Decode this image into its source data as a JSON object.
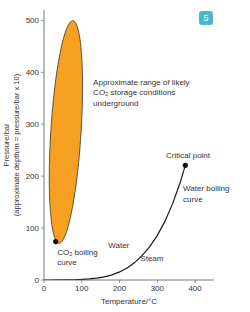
{
  "chart_data": {
    "type": "line",
    "x_label": "Temperature/°C",
    "y_label": "Pressure/bar\n(approximate depth/m = pressure/bar x 10)",
    "xlim": [
      0,
      450
    ],
    "ylim": [
      0,
      520
    ],
    "xticks": [
      0,
      100,
      200,
      300,
      400
    ],
    "yticks": [
      0,
      100,
      200,
      300,
      400,
      500
    ],
    "grid": false,
    "x": [
      0,
      10,
      20,
      40,
      60,
      80,
      100,
      120,
      140,
      160,
      180,
      200,
      220,
      240,
      260,
      280,
      300,
      320,
      340,
      360,
      374
    ],
    "series": [
      {
        "color": "#1a1a1a",
        "values": [
          0.006,
          0.012,
          0.023,
          0.074,
          0.199,
          0.474,
          1.013,
          1.985,
          3.614,
          6.18,
          10.0,
          15.55,
          23.2,
          33.5,
          47.4,
          64.2,
          85.9,
          112.9,
          146.1,
          186.7,
          220.9
        ]
      }
    ],
    "points": {
      "x": [
        31,
        374
      ],
      "values": [
        74,
        220.9
      ]
    },
    "ellipse": {
      "center": [
        58,
        285
      ],
      "width": 80,
      "height": 430,
      "angle": -5,
      "color": "#f5a020"
    },
    "annotations": [
      {
        "text": "Approximate range of likely\nCO₂ storage conditions\nunderground",
        "x": 130,
        "y": 390,
        "anchor": "top"
      },
      {
        "text": "CO₂ boiling\ncurve",
        "x": 35,
        "y": 62,
        "anchor": "top"
      },
      {
        "text": "Water",
        "x": 170,
        "y": 58,
        "anchor": "bottom"
      },
      {
        "text": "Steam",
        "x": 255,
        "y": 32,
        "anchor": "bottom"
      },
      {
        "text": "Critical point",
        "x": 323,
        "y": 232,
        "anchor": "bottom"
      },
      {
        "text": "Water boiling\ncurve",
        "x": 368,
        "y": 185,
        "anchor": "top"
      }
    ],
    "badge": {
      "text": "5",
      "color": "#4ab8cc"
    }
  }
}
